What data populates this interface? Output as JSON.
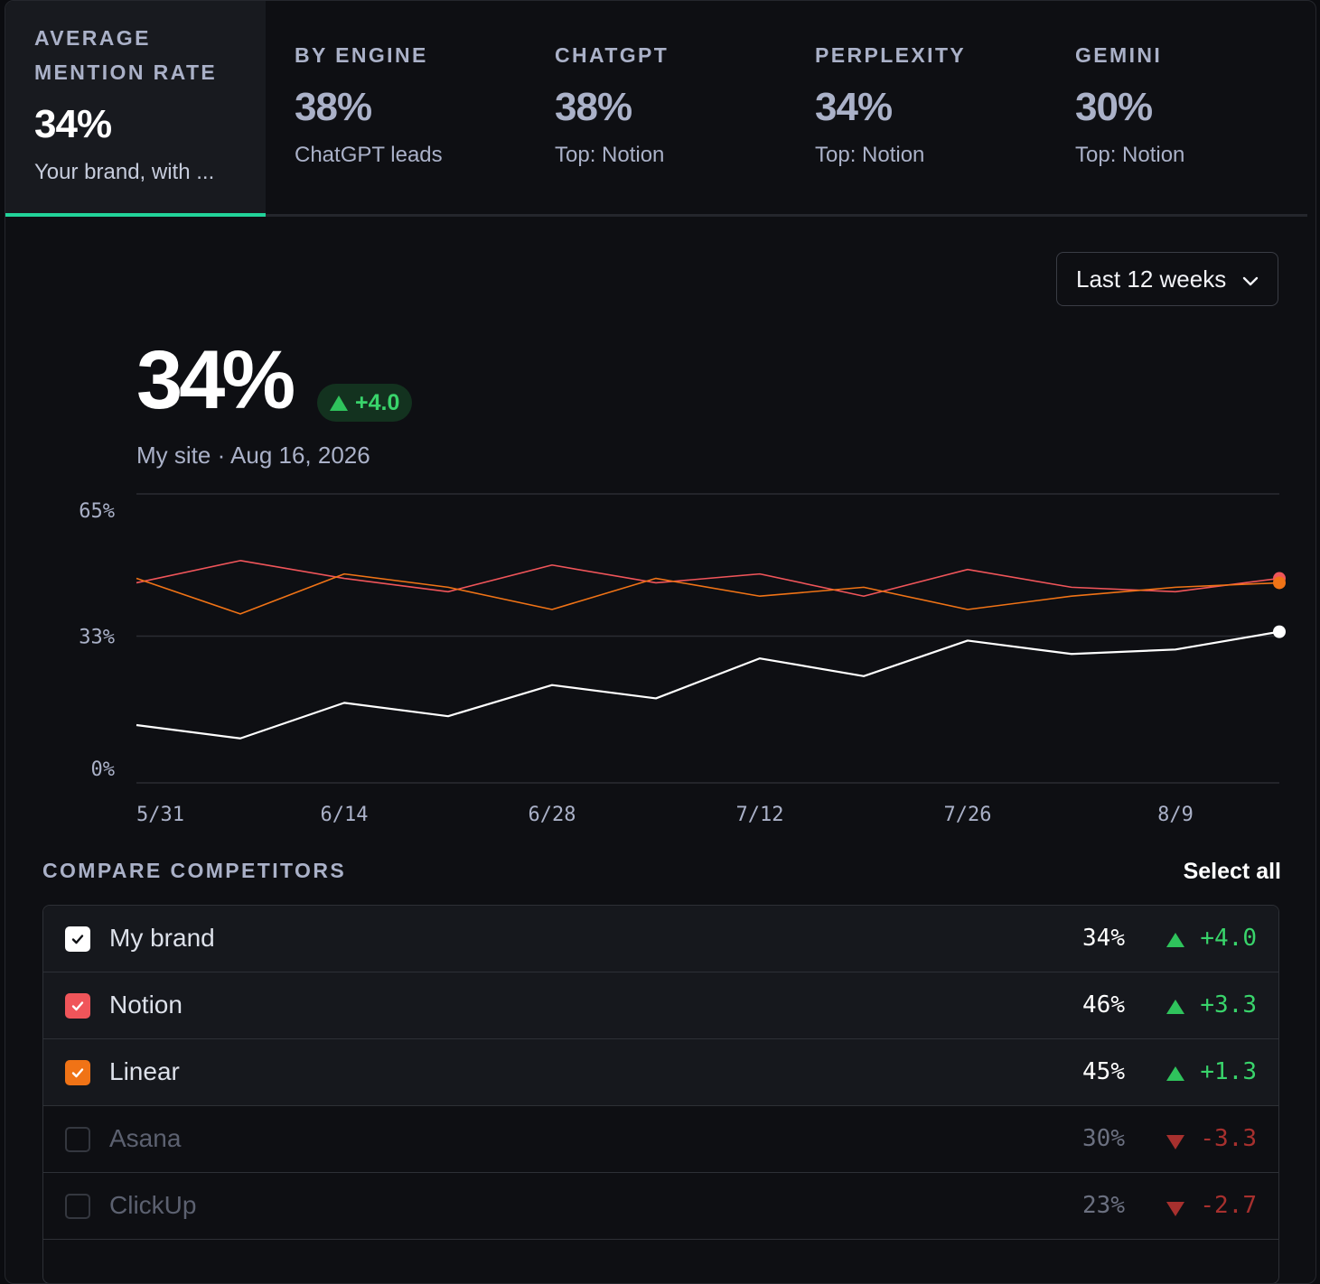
{
  "tabs": [
    {
      "label": "AVERAGE MENTION RATE",
      "value": "34%",
      "sub": "Your brand, with ...",
      "active": true
    },
    {
      "label": "BY ENGINE",
      "value": "38%",
      "sub": "ChatGPT leads",
      "active": false
    },
    {
      "label": "CHATGPT",
      "value": "38%",
      "sub": "Top: Notion",
      "active": false
    },
    {
      "label": "PERPLEXITY",
      "value": "34%",
      "sub": "Top: Notion",
      "active": false
    },
    {
      "label": "GEMINI",
      "value": "30%",
      "sub": "Top: Notion",
      "active": false
    }
  ],
  "range": {
    "label": "Last 12 weeks"
  },
  "headline": {
    "value": "34%",
    "delta": "+4.0",
    "subtitle": "My site · Aug 16, 2026"
  },
  "colors": {
    "my_brand": "#ffffff",
    "notion": "#f0555a",
    "linear": "#f07316",
    "accent": "#22d39a",
    "positive": "#39d46b",
    "negative": "#a7302e"
  },
  "chart_data": {
    "type": "line",
    "x": [
      "5/31",
      "6/7",
      "6/14",
      "6/21",
      "6/28",
      "7/5",
      "7/12",
      "7/19",
      "7/26",
      "8/2",
      "8/9",
      "8/16"
    ],
    "x_tick_labels": [
      "5/31",
      "6/14",
      "6/28",
      "7/12",
      "7/26",
      "8/9"
    ],
    "y_tick_labels": [
      "65%",
      "33%",
      "0%"
    ],
    "ylim": [
      0,
      65
    ],
    "grid": true,
    "series": [
      {
        "name": "Notion",
        "color": "#f0555a",
        "values": [
          45,
          50,
          46,
          43,
          49,
          45,
          47,
          42,
          48,
          44,
          43,
          46
        ],
        "end_marker": true
      },
      {
        "name": "Linear",
        "color": "#f07316",
        "values": [
          46,
          38,
          47,
          44,
          39,
          46,
          42,
          44,
          39,
          42,
          44,
          45
        ],
        "end_marker": true
      },
      {
        "name": "My brand",
        "color": "#ffffff",
        "values": [
          13,
          10,
          18,
          15,
          22,
          19,
          28,
          24,
          32,
          29,
          30,
          34
        ],
        "end_marker": true
      }
    ]
  },
  "compare": {
    "title": "COMPARE COMPETITORS",
    "select_all": "Select all",
    "rows": [
      {
        "name": "My brand",
        "pct": "34%",
        "delta": "+4.0",
        "dir": "up",
        "checked": true,
        "color": "#ffffff"
      },
      {
        "name": "Notion",
        "pct": "46%",
        "delta": "+3.3",
        "dir": "up",
        "checked": true,
        "color": "#f0555a"
      },
      {
        "name": "Linear",
        "pct": "45%",
        "delta": "+1.3",
        "dir": "up",
        "checked": true,
        "color": "#f07316"
      },
      {
        "name": "Asana",
        "pct": "30%",
        "delta": "-3.3",
        "dir": "down",
        "checked": false,
        "color": ""
      },
      {
        "name": "ClickUp",
        "pct": "23%",
        "delta": "-2.7",
        "dir": "down",
        "checked": false,
        "color": ""
      }
    ]
  }
}
